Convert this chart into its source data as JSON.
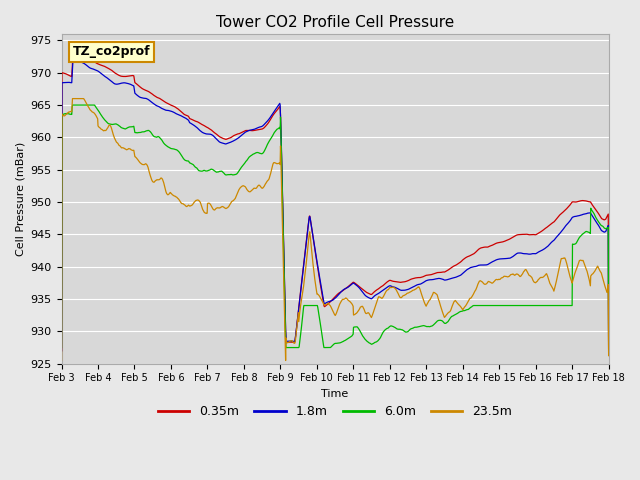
{
  "title": "Tower CO2 Profile Cell Pressure",
  "ylabel": "Cell Pressure (mBar)",
  "xlabel": "Time",
  "ylim": [
    925,
    976
  ],
  "yticks": [
    925,
    930,
    935,
    940,
    945,
    950,
    955,
    960,
    965,
    970,
    975
  ],
  "xtick_labels": [
    "Feb 3",
    "Feb 4",
    "Feb 5",
    "Feb 6",
    "Feb 7",
    "Feb 8",
    "Feb 9",
    "Feb 10",
    "Feb 11",
    "Feb 12",
    "Feb 13",
    "Feb 14",
    "Feb 15",
    "Feb 16",
    "Feb 17",
    "Feb 18"
  ],
  "legend_label": "TZ_co2prof",
  "series_labels": [
    "0.35m",
    "1.8m",
    "6.0m",
    "23.5m"
  ],
  "series_colors": [
    "#cc0000",
    "#0000cc",
    "#00bb00",
    "#cc8800"
  ],
  "background_color": "#e8e8e8",
  "plot_bg_color": "#d8d8d8",
  "n_points": 1500
}
